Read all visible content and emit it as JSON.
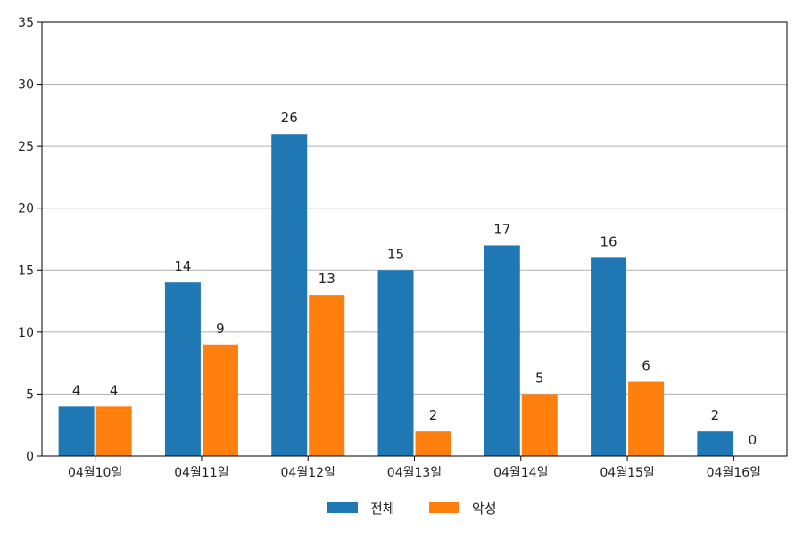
{
  "chart_data": {
    "type": "bar",
    "title": "",
    "xlabel": "",
    "ylabel": "",
    "categories": [
      "04월10일",
      "04월11일",
      "04월12일",
      "04월13일",
      "04월14일",
      "04월15일",
      "04월16일"
    ],
    "series": [
      {
        "name": "전체",
        "values": [
          4,
          14,
          26,
          15,
          17,
          16,
          2
        ],
        "color": "#1f77b4"
      },
      {
        "name": "악성",
        "values": [
          4,
          9,
          13,
          2,
          5,
          6,
          0
        ],
        "color": "#ff7f0e"
      }
    ],
    "ylim": [
      0,
      35
    ],
    "yticks": [
      0,
      5,
      10,
      15,
      20,
      25,
      30,
      35
    ],
    "grid": "y",
    "grid_color": "#b0b0b0",
    "legend_position": "bottom-center"
  }
}
